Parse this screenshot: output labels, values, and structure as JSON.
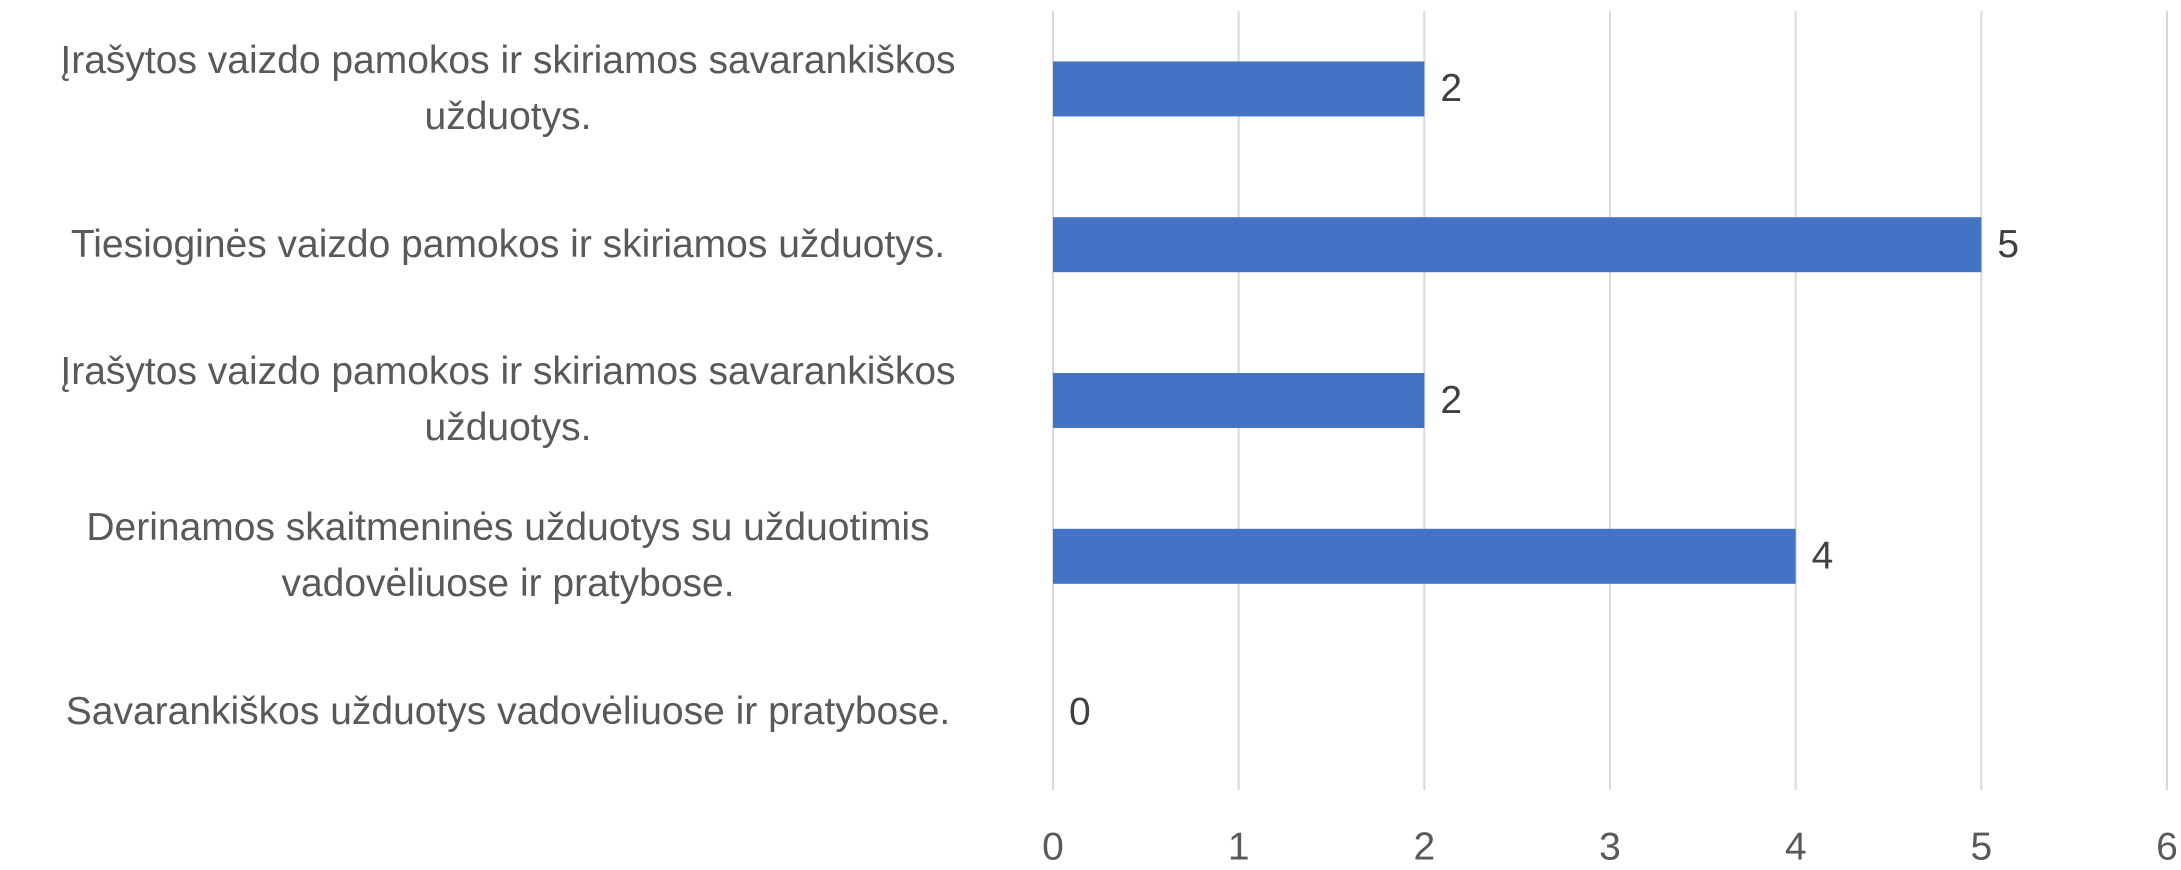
{
  "chart_data": {
    "type": "bar",
    "orientation": "horizontal",
    "categories": [
      "Įrašytos vaizdo pamokos ir skiriamos savarankiškos užduotys.",
      "Tiesioginės vaizdo pamokos ir skiriamos užduotys.",
      "Įrašytos vaizdo pamokos ir skiriamos savarankiškos užduotys.",
      "Derinamos skaitmeninės užduotys su užduotimis vadovėliuose ir pratybose.",
      "Savarankiškos užduotys vadovėliuose ir pratybose."
    ],
    "values": [
      2,
      5,
      2,
      4,
      0
    ],
    "color": "#4472c4",
    "xlim": [
      0,
      6
    ],
    "xticks": [
      0,
      1,
      2,
      3,
      4,
      5,
      6
    ],
    "grid": true
  }
}
